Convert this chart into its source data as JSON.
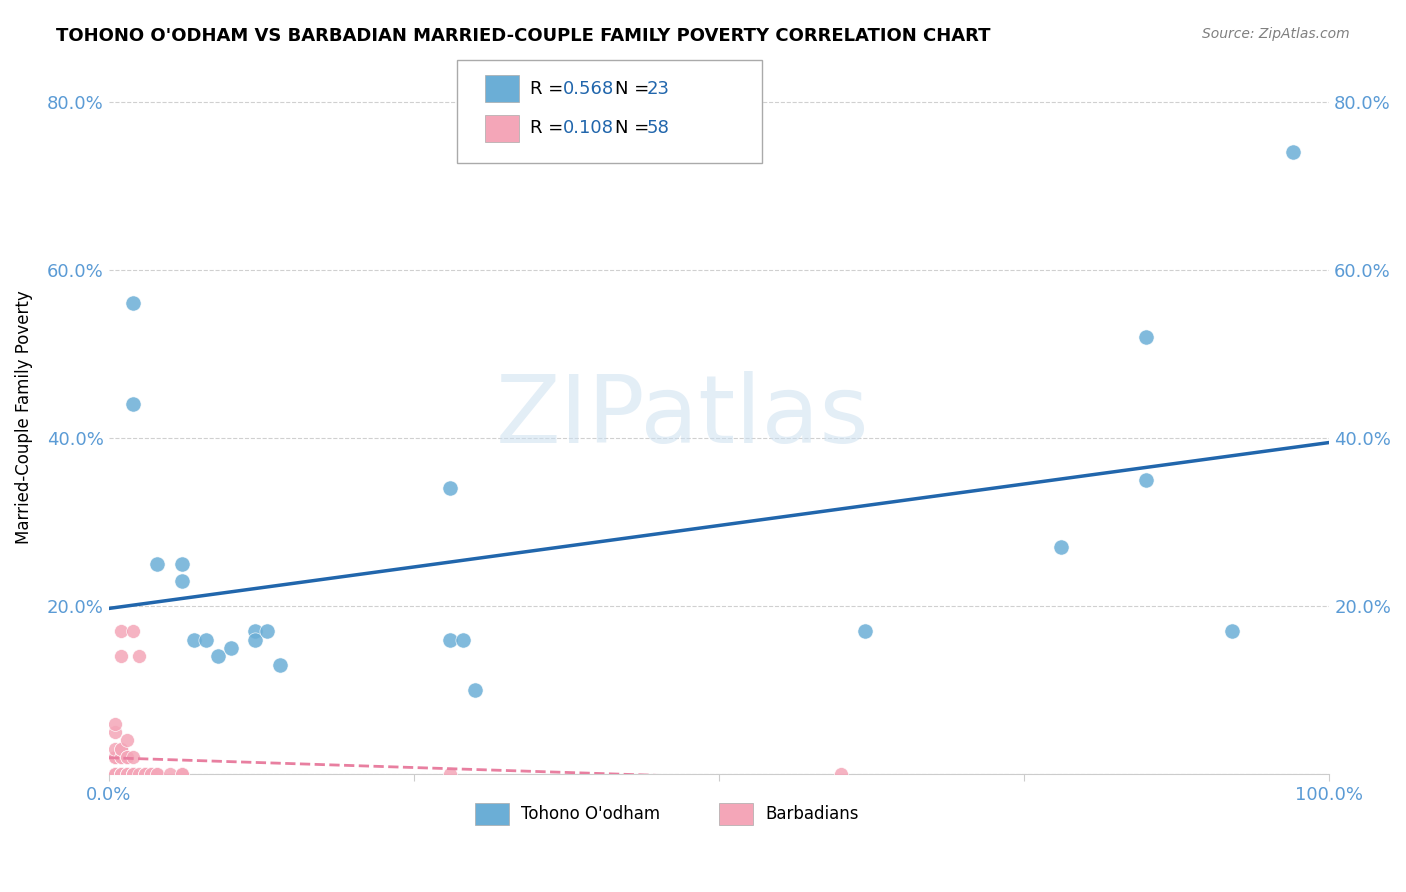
{
  "title": "TOHONO O'ODHAM VS BARBADIAN MARRIED-COUPLE FAMILY POVERTY CORRELATION CHART",
  "source": "Source: ZipAtlas.com",
  "ylabel": "Married-Couple Family Poverty",
  "xlim": [
    0,
    1.0
  ],
  "ylim": [
    0,
    0.85
  ],
  "xticks": [
    0.0,
    0.25,
    0.5,
    0.75,
    1.0
  ],
  "xticklabels": [
    "0.0%",
    "",
    "",
    "",
    "100.0%"
  ],
  "yticks": [
    0.0,
    0.2,
    0.4,
    0.6,
    0.8
  ],
  "yticklabels": [
    "",
    "20.0%",
    "40.0%",
    "60.0%",
    "80.0%"
  ],
  "legend_r1": "0.568",
  "legend_n1": "23",
  "legend_r2": "0.108",
  "legend_n2": "58",
  "blue_color": "#6baed6",
  "pink_color": "#f4a6b8",
  "line_blue": "#2166ac",
  "line_pink": "#e87fa0",
  "tohono_x": [
    0.02,
    0.02,
    0.04,
    0.06,
    0.06,
    0.07,
    0.08,
    0.09,
    0.1,
    0.12,
    0.12,
    0.13,
    0.14,
    0.28,
    0.28,
    0.29,
    0.3,
    0.62,
    0.78,
    0.85,
    0.85,
    0.92,
    0.97
  ],
  "tohono_y": [
    0.56,
    0.44,
    0.25,
    0.23,
    0.25,
    0.16,
    0.16,
    0.14,
    0.15,
    0.17,
    0.16,
    0.17,
    0.13,
    0.34,
    0.16,
    0.16,
    0.1,
    0.17,
    0.27,
    0.35,
    0.52,
    0.17,
    0.74
  ],
  "barbadian_x": [
    0.005,
    0.005,
    0.005,
    0.005,
    0.005,
    0.005,
    0.005,
    0.005,
    0.005,
    0.005,
    0.005,
    0.005,
    0.005,
    0.005,
    0.005,
    0.005,
    0.005,
    0.01,
    0.01,
    0.01,
    0.01,
    0.01,
    0.01,
    0.01,
    0.01,
    0.01,
    0.01,
    0.01,
    0.01,
    0.015,
    0.015,
    0.015,
    0.015,
    0.015,
    0.015,
    0.02,
    0.02,
    0.02,
    0.02,
    0.02,
    0.02,
    0.02,
    0.02,
    0.025,
    0.025,
    0.03,
    0.03,
    0.03,
    0.03,
    0.035,
    0.035,
    0.04,
    0.04,
    0.05,
    0.06,
    0.06,
    0.28,
    0.6
  ],
  "barbadian_y": [
    0.0,
    0.0,
    0.0,
    0.0,
    0.0,
    0.0,
    0.0,
    0.0,
    0.0,
    0.0,
    0.02,
    0.02,
    0.02,
    0.02,
    0.03,
    0.05,
    0.06,
    0.0,
    0.0,
    0.0,
    0.0,
    0.0,
    0.0,
    0.02,
    0.02,
    0.03,
    0.03,
    0.14,
    0.17,
    0.0,
    0.0,
    0.0,
    0.02,
    0.02,
    0.04,
    0.0,
    0.0,
    0.0,
    0.0,
    0.0,
    0.0,
    0.02,
    0.17,
    0.0,
    0.14,
    0.0,
    0.0,
    0.0,
    0.0,
    0.0,
    0.0,
    0.0,
    0.0,
    0.0,
    0.0,
    0.0,
    0.0,
    0.0
  ],
  "grid_color": "#d0d0d0",
  "background_color": "#ffffff",
  "tick_color": "#5b9bd5"
}
